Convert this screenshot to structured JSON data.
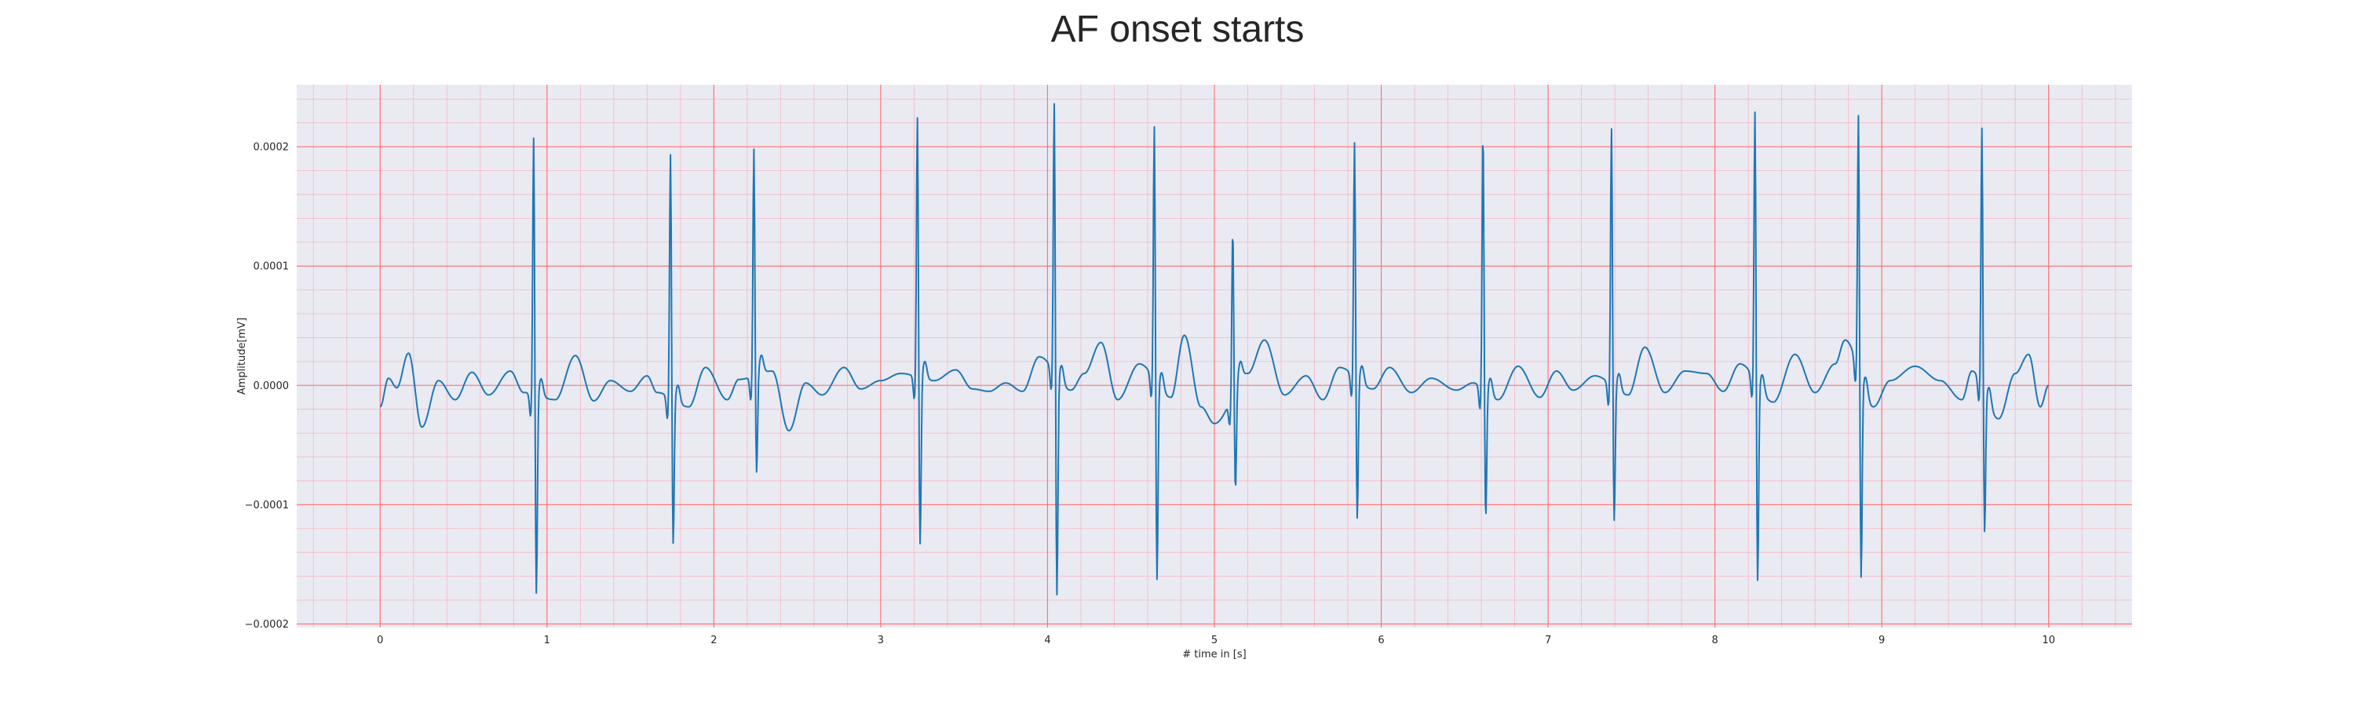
{
  "chart_data": {
    "type": "line",
    "title": "AF onset starts",
    "xlabel": "# time in [s]",
    "ylabel": "Amplitude[mV]",
    "xlim": [
      -0.5,
      10.5
    ],
    "ylim": [
      -0.000203,
      0.000252
    ],
    "x_ticks": [
      0,
      1,
      2,
      3,
      4,
      5,
      6,
      7,
      8,
      9,
      10
    ],
    "y_ticks": [
      -0.0002,
      -0.0001,
      0.0,
      0.0001,
      0.0002
    ],
    "x_tick_labels": [
      "0",
      "1",
      "2",
      "3",
      "4",
      "5",
      "6",
      "7",
      "8",
      "9",
      "10"
    ],
    "y_tick_labels": [
      "−0.0002",
      "−0.0001",
      "0.0000",
      "0.0001",
      "0.0002"
    ],
    "grid": true,
    "minor_grid": true,
    "colors": {
      "plot_background": "#eaeaf2",
      "major_grid": "#ff6e6e",
      "minor_grid": "#f7b6c2",
      "line": "#1f77b4"
    },
    "series": [
      {
        "sample_rate_hz": 250,
        "beats": [
          {
            "t": 0.92,
            "r": 0.00022,
            "s": -0.00017
          },
          {
            "t": 1.74,
            "r": 0.000208,
            "s": -0.000124
          },
          {
            "t": 2.24,
            "r": 0.000193,
            "s": -8.5e-05
          },
          {
            "t": 3.22,
            "r": 0.000222,
            "s": -0.000143
          },
          {
            "t": 4.04,
            "r": 0.000231,
            "s": -0.000187
          },
          {
            "t": 4.64,
            "r": 0.000217,
            "s": -0.000168
          },
          {
            "t": 5.11,
            "r": 0.000142,
            "s": -8.8e-05
          },
          {
            "t": 5.84,
            "r": 0.0002,
            "s": -0.00012
          },
          {
            "t": 6.61,
            "r": 0.00022,
            "s": -0.00011
          },
          {
            "t": 7.38,
            "r": 0.000219,
            "s": -0.000115
          },
          {
            "t": 8.24,
            "r": 0.00023,
            "s": -0.000168
          },
          {
            "t": 8.86,
            "r": 0.000219,
            "s": -0.000169
          },
          {
            "t": 9.6,
            "r": 0.00022,
            "s": -0.00012
          }
        ],
        "baseline_points": [
          [
            0.0,
            -1.8e-05
          ],
          [
            0.05,
            6e-06
          ],
          [
            0.1,
            -2e-06
          ],
          [
            0.17,
            2.7e-05
          ],
          [
            0.25,
            -3.5e-05
          ],
          [
            0.35,
            4e-06
          ],
          [
            0.45,
            -1.2e-05
          ],
          [
            0.55,
            1.1e-05
          ],
          [
            0.65,
            -8e-06
          ],
          [
            0.78,
            1.2e-05
          ],
          [
            0.86,
            -6e-06
          ],
          [
            1.05,
            -1.2e-05
          ],
          [
            1.17,
            2.5e-05
          ],
          [
            1.28,
            -1.3e-05
          ],
          [
            1.38,
            4e-06
          ],
          [
            1.5,
            -5e-06
          ],
          [
            1.6,
            8e-06
          ],
          [
            1.66,
            -6e-06
          ],
          [
            1.85,
            -1.8e-05
          ],
          [
            1.95,
            1.5e-05
          ],
          [
            2.08,
            -1.2e-05
          ],
          [
            2.15,
            5e-06
          ],
          [
            2.35,
            1.2e-05
          ],
          [
            2.45,
            -3.8e-05
          ],
          [
            2.55,
            2e-06
          ],
          [
            2.65,
            -8e-06
          ],
          [
            2.78,
            1.5e-05
          ],
          [
            2.88,
            -3e-06
          ],
          [
            3.0,
            4e-06
          ],
          [
            3.12,
            1e-05
          ],
          [
            3.32,
            4e-06
          ],
          [
            3.45,
            1.3e-05
          ],
          [
            3.55,
            -3e-06
          ],
          [
            3.65,
            -5e-06
          ],
          [
            3.75,
            2e-06
          ],
          [
            3.85,
            -5e-06
          ],
          [
            3.95,
            2.4e-05
          ],
          [
            4.14,
            -4e-06
          ],
          [
            4.22,
            1e-05
          ],
          [
            4.32,
            3.6e-05
          ],
          [
            4.42,
            -1.2e-05
          ],
          [
            4.55,
            1.8e-05
          ],
          [
            4.74,
            -1e-05
          ],
          [
            4.82,
            4.2e-05
          ],
          [
            4.92,
            -1.8e-05
          ],
          [
            5.0,
            -3.2e-05
          ],
          [
            5.2,
            1e-05
          ],
          [
            5.3,
            3.8e-05
          ],
          [
            5.42,
            -8e-06
          ],
          [
            5.55,
            8e-06
          ],
          [
            5.65,
            -1.2e-05
          ],
          [
            5.75,
            1.5e-05
          ],
          [
            5.95,
            -3e-06
          ],
          [
            6.05,
            1.5e-05
          ],
          [
            6.18,
            -6e-06
          ],
          [
            6.3,
            6e-06
          ],
          [
            6.45,
            -4e-06
          ],
          [
            6.55,
            2e-06
          ],
          [
            6.7,
            -1.2e-05
          ],
          [
            6.82,
            1.6e-05
          ],
          [
            6.95,
            -1e-05
          ],
          [
            7.05,
            1.2e-05
          ],
          [
            7.15,
            -4e-06
          ],
          [
            7.28,
            8e-06
          ],
          [
            7.48,
            -8e-06
          ],
          [
            7.58,
            3.2e-05
          ],
          [
            7.7,
            -6e-06
          ],
          [
            7.82,
            1.2e-05
          ],
          [
            7.95,
            1e-05
          ],
          [
            8.05,
            -5e-06
          ],
          [
            8.15,
            1.8e-05
          ],
          [
            8.35,
            -1.4e-05
          ],
          [
            8.48,
            2.6e-05
          ],
          [
            8.6,
            -6e-06
          ],
          [
            8.72,
            1.8e-05
          ],
          [
            8.78,
            3.8e-05
          ],
          [
            8.95,
            -1.8e-05
          ],
          [
            9.05,
            4e-06
          ],
          [
            9.2,
            1.6e-05
          ],
          [
            9.35,
            4e-06
          ],
          [
            9.48,
            -1.2e-05
          ],
          [
            9.54,
            1.2e-05
          ],
          [
            9.7,
            -2.8e-05
          ],
          [
            9.8,
            1e-05
          ],
          [
            9.88,
            2.6e-05
          ],
          [
            9.95,
            -1.8e-05
          ],
          [
            10.0,
            0.0
          ]
        ]
      }
    ]
  }
}
